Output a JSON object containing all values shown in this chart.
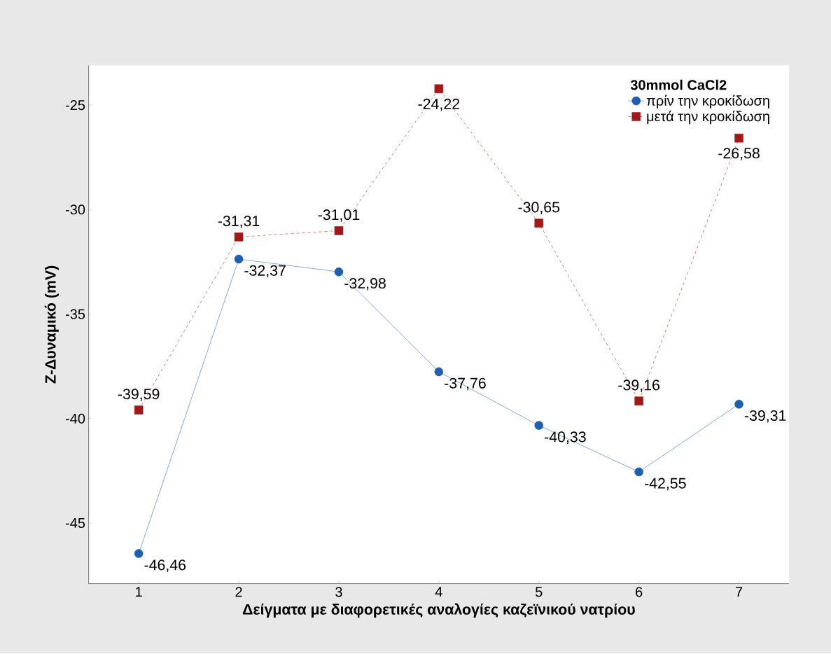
{
  "chart_data": {
    "type": "line",
    "xlabel": "Δείγματα με διαφορετικές αναλογίες καζεϊνικού νατρίου",
    "ylabel": "Z-Δυναμικό (mV)",
    "legend_title": "30mmol CaCl2",
    "legend": "top right",
    "grid": false,
    "categories": [
      "1",
      "2",
      "3",
      "4",
      "5",
      "6",
      "7"
    ],
    "ylim": [
      -47.9,
      -23.1
    ],
    "yticks": [
      -45,
      -40,
      -35,
      -30,
      -25
    ],
    "series": [
      {
        "name": "πρίν την κροκίδωση",
        "color": "#1f5fae",
        "marker": "circle",
        "line_style": "solid",
        "values": [
          -46.46,
          -32.37,
          -32.98,
          -37.76,
          -40.33,
          -42.55,
          -39.31
        ],
        "value_labels": [
          "-46,46",
          "-32,37",
          "-32,98",
          "-37,76",
          "-40,33",
          "-42,55",
          "-39,31"
        ]
      },
      {
        "name": "μετά την κροκίδωση",
        "color": "#a01818",
        "marker": "square",
        "line_style": "dashed",
        "values": [
          -39.59,
          -31.31,
          -31.01,
          -24.22,
          -30.65,
          -39.16,
          -26.58
        ],
        "value_labels": [
          "-39,59",
          "-31,31",
          "-31,01",
          "-24,22",
          "-30,65",
          "-39,16",
          "-26,58"
        ]
      }
    ]
  }
}
